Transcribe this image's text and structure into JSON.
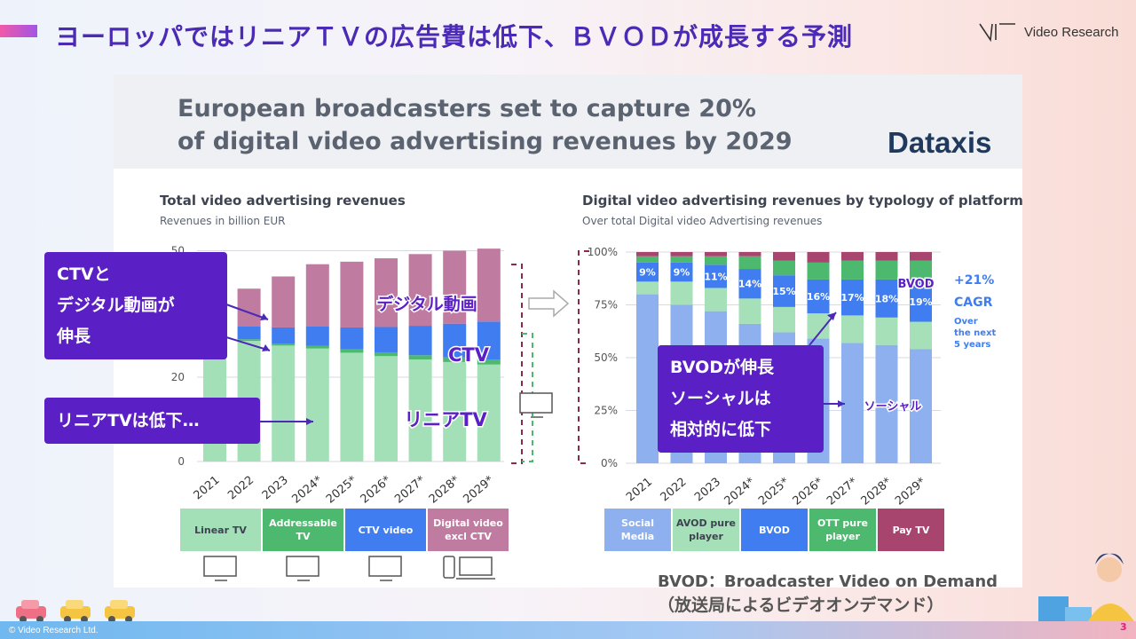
{
  "slide": {
    "title": "ヨーロッパではリニアＴＶの広告費は低下、ＢＶＯＤが成長する予測",
    "logo_text": "Video Research",
    "copyright": "© Video Research Ltd.",
    "page_number": "3",
    "bvod_definition": "BVOD：Broadcaster Video on Demand",
    "bvod_definition_ja": "（放送局によるビデオオンデマンド）"
  },
  "card": {
    "title_line1": "European broadcasters set to capture 20%",
    "title_line2": "of digital video advertising revenues by 2029",
    "brand": "Dataxis"
  },
  "callouts": {
    "ctv_digital_line1": "CTVと",
    "ctv_digital_line2": "デジタル動画が",
    "ctv_digital_line3": "伸長",
    "linear_down": "リニアTVは低下…",
    "bvod_line1": "BVODが伸長",
    "bvod_line2": "ソーシャルは",
    "bvod_line3": "相対的に低下"
  },
  "chart_data": [
    {
      "type": "bar",
      "stacked": true,
      "title": "Total video advertising revenues",
      "subtitle": "Revenues in billion EUR",
      "categories": [
        "2021",
        "2022",
        "2023",
        "2024*",
        "2025*",
        "2026*",
        "2027*",
        "2028*",
        "2029*"
      ],
      "yticks": [
        "0",
        "20",
        "50"
      ],
      "ylim": [
        0,
        50
      ],
      "series": [
        {
          "name": "Linear TV",
          "color": "#a3e0b8",
          "values": [
            28.5,
            28.6,
            27.5,
            26.8,
            25.8,
            25.0,
            24.2,
            23.6,
            23.0
          ]
        },
        {
          "name": "Addressable TV",
          "color": "#4db96f",
          "values": [
            0.3,
            0.4,
            0.5,
            0.6,
            0.8,
            0.9,
            1.0,
            1.1,
            1.2
          ]
        },
        {
          "name": "CTV video",
          "color": "#3f7df0",
          "values": [
            2.0,
            3.0,
            3.8,
            4.6,
            5.2,
            6.0,
            7.0,
            8.0,
            9.0
          ]
        },
        {
          "name": "Digital video excl CTV",
          "color": "#c07ba0",
          "values": [
            5.4,
            9.0,
            12.1,
            14.8,
            15.6,
            16.3,
            17.0,
            17.3,
            17.3
          ]
        }
      ],
      "annotations": [
        "デジタル動画",
        "CTV",
        "リニアTV"
      ]
    },
    {
      "type": "bar",
      "stacked": true,
      "percent": true,
      "title": "Digital video advertising revenues by typology of platform",
      "subtitle": "Over total Digital video Advertising revenues",
      "categories": [
        "2021",
        "2022",
        "2023",
        "2024*",
        "2025*",
        "2026*",
        "2027*",
        "2028*",
        "2029*"
      ],
      "yticks": [
        "0%",
        "25%",
        "50%",
        "75%",
        "100%"
      ],
      "ylim": [
        0,
        100
      ],
      "series": [
        {
          "name": "Social Media",
          "color": "#8fb0ee",
          "values": [
            80,
            75,
            72,
            66,
            62,
            59,
            57,
            56,
            54
          ]
        },
        {
          "name": "AVOD pure player",
          "color": "#a6e0b8",
          "values": [
            6,
            11,
            11,
            12,
            12,
            12,
            13,
            13,
            13
          ]
        },
        {
          "name": "BVOD",
          "color": "#3f7df0",
          "values": [
            9,
            9,
            11,
            14,
            15,
            16,
            17,
            18,
            19
          ]
        },
        {
          "name": "OTT pure player",
          "color": "#4db96f",
          "values": [
            3,
            3,
            4,
            6,
            7,
            8,
            9,
            9,
            10
          ]
        },
        {
          "name": "Pay TV",
          "color": "#a8456e",
          "values": [
            2,
            2,
            2,
            2,
            4,
            5,
            4,
            4,
            4
          ]
        }
      ],
      "bvod_labels": [
        "9%",
        "9%",
        "11%",
        "14%",
        "15%",
        "16%",
        "17%",
        "18%",
        "19%"
      ],
      "annotations": {
        "bvod": "BVOD",
        "social": "ソーシャル",
        "cagr": "+21%",
        "cagr_label": "CAGR",
        "cagr_note1": "Over",
        "cagr_note2": "the next",
        "cagr_note3": "5 years"
      }
    }
  ],
  "legend_left": [
    {
      "label1": "Linear TV",
      "label2": "",
      "color": "#a3e0b8"
    },
    {
      "label1": "Addressable",
      "label2": "TV",
      "color": "#4db96f"
    },
    {
      "label1": "CTV video",
      "label2": "",
      "color": "#3f7df0"
    },
    {
      "label1": "Digital video",
      "label2": "excl CTV",
      "color": "#c07ba0"
    }
  ],
  "legend_right": [
    {
      "label1": "Social",
      "label2": "Media",
      "color": "#8fb0ee"
    },
    {
      "label1": "AVOD pure",
      "label2": "player",
      "color": "#a6e0b8"
    },
    {
      "label1": "BVOD",
      "label2": "",
      "color": "#3f7df0"
    },
    {
      "label1": "OTT pure",
      "label2": "player",
      "color": "#4db96f"
    },
    {
      "label1": "Pay TV",
      "label2": "",
      "color": "#a8456e"
    }
  ]
}
